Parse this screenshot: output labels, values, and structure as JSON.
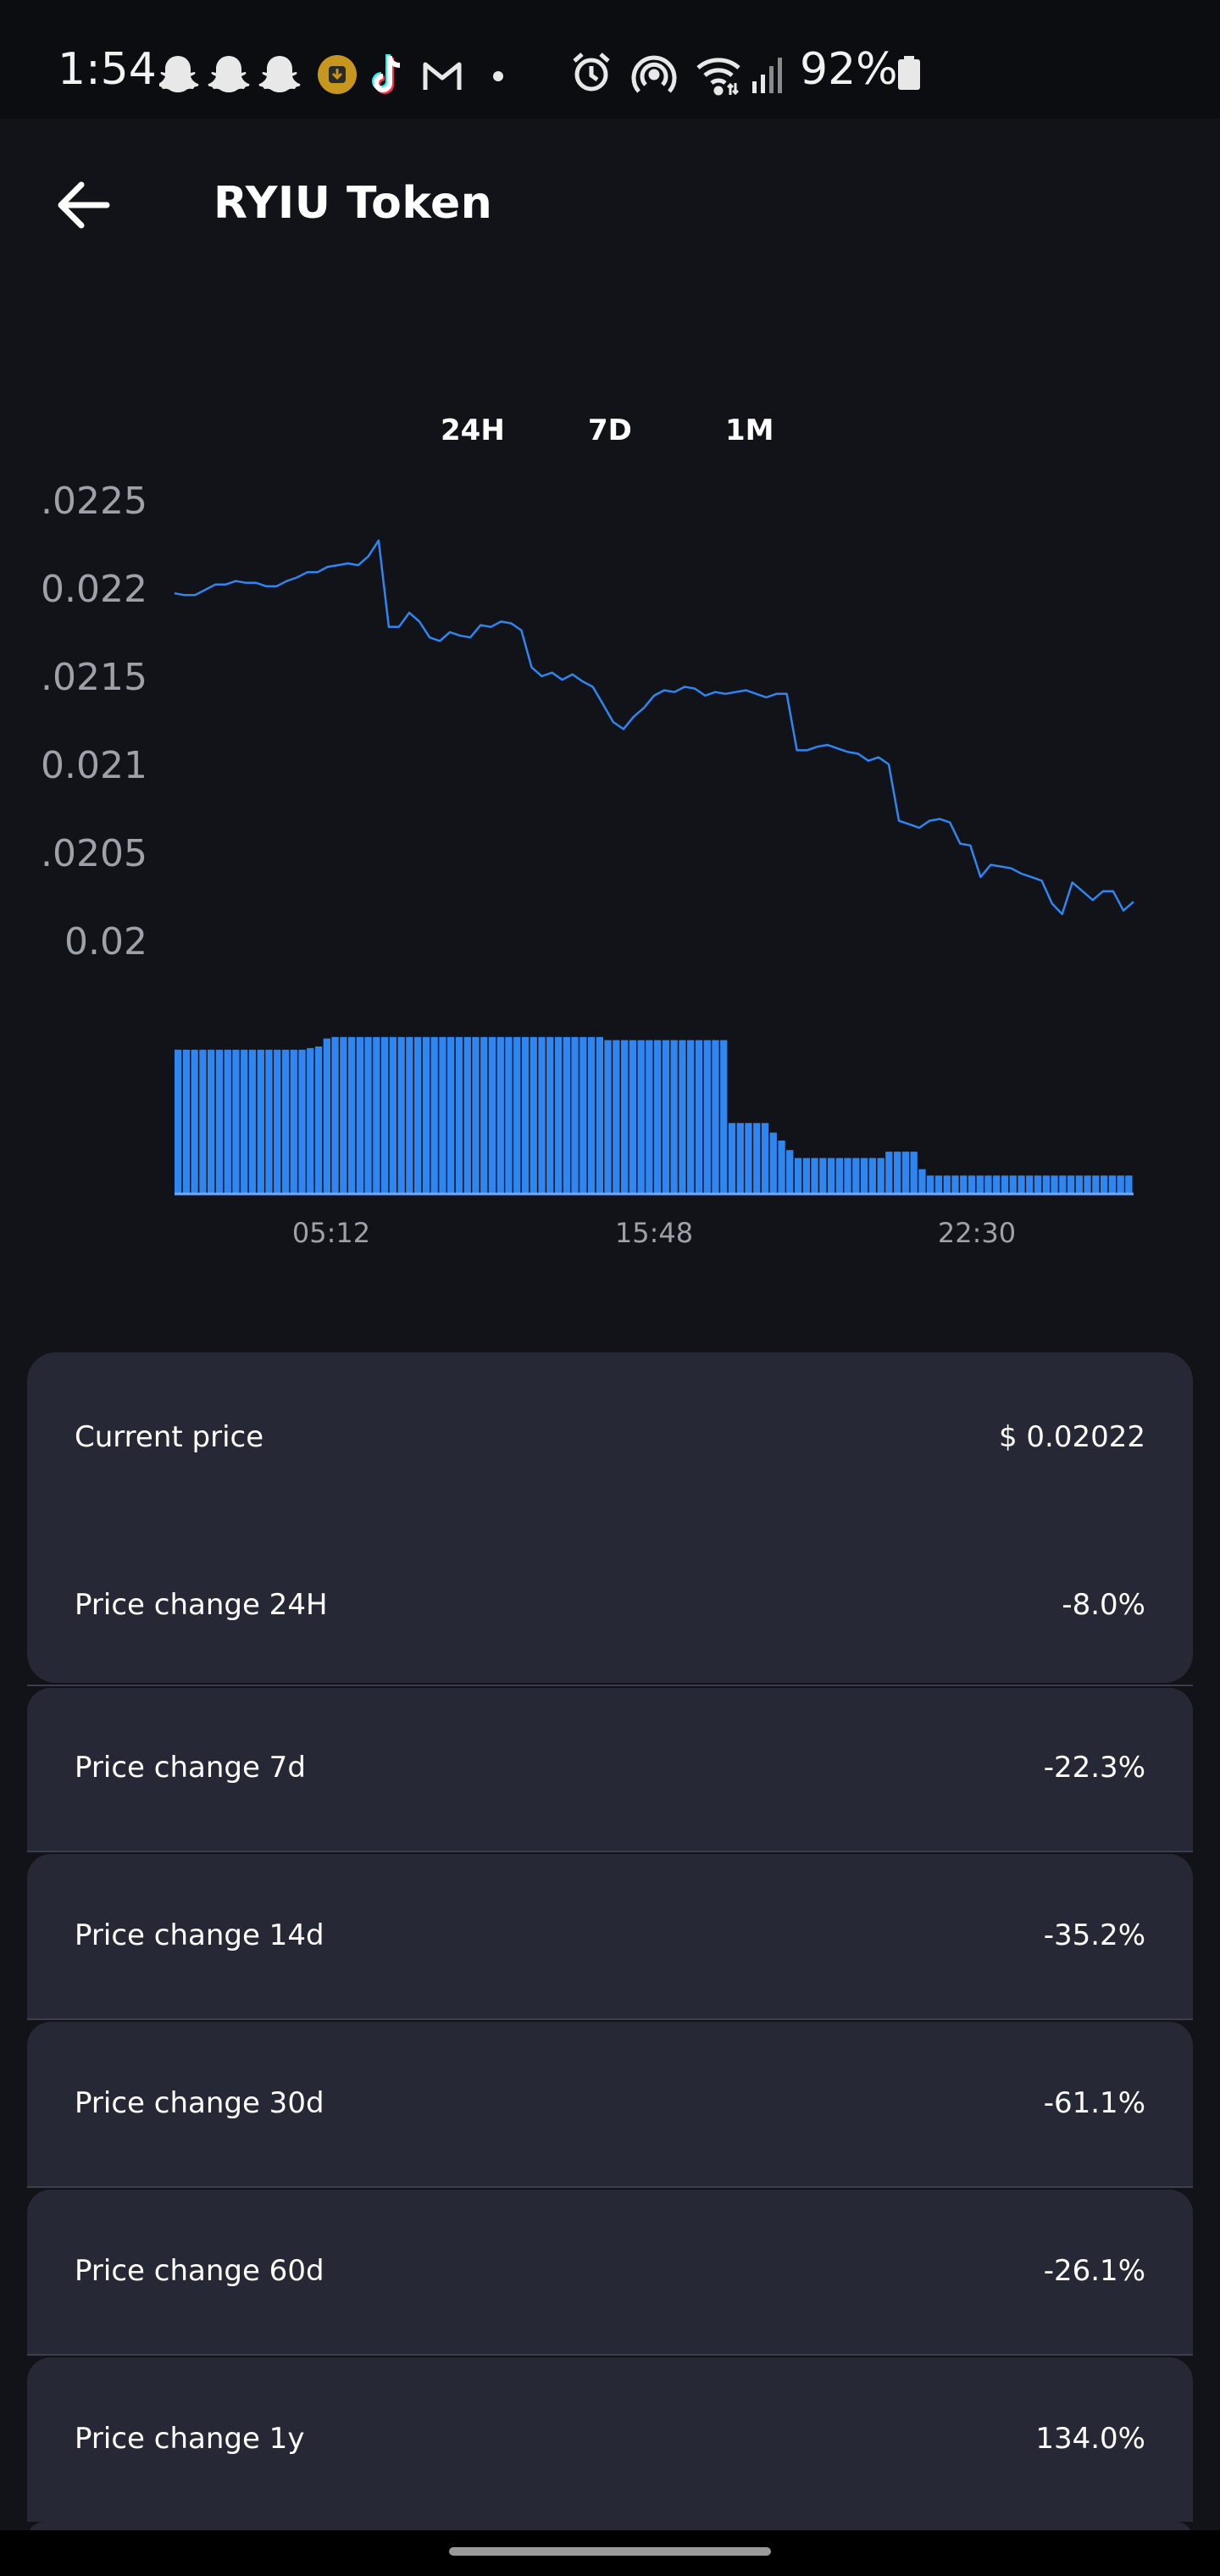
{
  "status_bar": {
    "time": "1:54",
    "battery": "92%",
    "left_icons": [
      "snapchat-icon",
      "snapchat-icon",
      "snapchat-icon",
      "download-icon",
      "tiktok-icon",
      "gmail-icon",
      "dot-icon"
    ],
    "right_icons": [
      "alarm-icon",
      "hotspot-icon",
      "wifi-icon",
      "signal-icon",
      "battery-icon"
    ]
  },
  "header": {
    "title": "RYIU Token",
    "back_icon": "arrow-left-icon"
  },
  "range_tabs": [
    "24H",
    "7D",
    "1M"
  ],
  "chart_data": [
    {
      "type": "line",
      "title": "",
      "xlabel": "",
      "ylabel": "",
      "ylim": [
        0.02,
        0.0225
      ],
      "y_ticks": [
        ".0225",
        "0.022",
        ".0215",
        "0.021",
        ".0205",
        "0.02"
      ],
      "x_ticks": [
        "05:12",
        "15:48",
        "22:30"
      ],
      "grid": false,
      "series": [
        {
          "color": "#2f86f0",
          "values": [
            0.02197,
            0.02196,
            0.02196,
            0.02199,
            0.02202,
            0.02202,
            0.02204,
            0.02203,
            0.02203,
            0.02201,
            0.02201,
            0.02204,
            0.02206,
            0.02209,
            0.02209,
            0.02212,
            0.02213,
            0.02214,
            0.02213,
            0.02218,
            0.02227,
            0.02178,
            0.02178,
            0.02186,
            0.02181,
            0.02172,
            0.0217,
            0.02175,
            0.02173,
            0.02172,
            0.02179,
            0.02178,
            0.02181,
            0.0218,
            0.02176,
            0.02155,
            0.0215,
            0.02152,
            0.02148,
            0.02151,
            0.02147,
            0.02144,
            0.02134,
            0.02124,
            0.0212,
            0.02127,
            0.02132,
            0.02139,
            0.02142,
            0.02141,
            0.02144,
            0.02143,
            0.02139,
            0.02141,
            0.0214,
            0.02141,
            0.02142,
            0.0214,
            0.02138,
            0.0214,
            0.0214,
            0.02108,
            0.02108,
            0.0211,
            0.02111,
            0.02109,
            0.02107,
            0.02106,
            0.02102,
            0.02104,
            0.021,
            0.02068,
            0.02066,
            0.02064,
            0.02068,
            0.02069,
            0.02067,
            0.02055,
            0.02054,
            0.02036,
            0.02043,
            0.02042,
            0.02041,
            0.02038,
            0.02036,
            0.02034,
            0.02021,
            0.02015,
            0.02033,
            0.02028,
            0.02023,
            0.02028,
            0.02028,
            0.02017,
            0.02022
          ]
        }
      ]
    },
    {
      "type": "bar",
      "title": "",
      "xlabel": "",
      "ylabel": "",
      "series": [
        {
          "color": "#2f86f0",
          "values": [
            0.9,
            0.9,
            0.9,
            0.9,
            0.9,
            0.9,
            0.9,
            0.9,
            0.9,
            0.9,
            0.9,
            0.9,
            0.9,
            0.9,
            0.9,
            0.9,
            0.91,
            0.92,
            0.97,
            0.98,
            0.98,
            0.98,
            0.98,
            0.98,
            0.98,
            0.98,
            0.98,
            0.98,
            0.98,
            0.98,
            0.98,
            0.98,
            0.98,
            0.98,
            0.98,
            0.98,
            0.98,
            0.98,
            0.98,
            0.98,
            0.98,
            0.98,
            0.98,
            0.98,
            0.98,
            0.98,
            0.98,
            0.98,
            0.98,
            0.98,
            0.98,
            0.98,
            0.96,
            0.96,
            0.96,
            0.96,
            0.96,
            0.96,
            0.96,
            0.96,
            0.96,
            0.96,
            0.96,
            0.96,
            0.96,
            0.96,
            0.96,
            0.44,
            0.44,
            0.44,
            0.44,
            0.44,
            0.38,
            0.33,
            0.27,
            0.22,
            0.22,
            0.22,
            0.22,
            0.22,
            0.22,
            0.22,
            0.22,
            0.22,
            0.22,
            0.22,
            0.26,
            0.26,
            0.26,
            0.26,
            0.15,
            0.11,
            0.11,
            0.11,
            0.11,
            0.11,
            0.11,
            0.11,
            0.11,
            0.11,
            0.11,
            0.11,
            0.11,
            0.11,
            0.11,
            0.11,
            0.11,
            0.11,
            0.11,
            0.11,
            0.11,
            0.11,
            0.11,
            0.11,
            0.11,
            0.11
          ]
        }
      ]
    }
  ],
  "stats": [
    {
      "label": "Current price",
      "value": "$ 0.02022"
    },
    {
      "label": "Price change 24H",
      "value": "-8.0%"
    },
    {
      "label": "Price change 7d",
      "value": "-22.3%"
    },
    {
      "label": "Price change 14d",
      "value": "-35.2%"
    },
    {
      "label": "Price change 30d",
      "value": "-61.1%"
    },
    {
      "label": "Price change 60d",
      "value": "-26.1%"
    },
    {
      "label": "Price change 1y",
      "value": "134.0%"
    }
  ],
  "colors": {
    "background": "#121318",
    "card": "#262935",
    "accent": "#2f86f0",
    "axis_text": "#9ea1a8"
  }
}
